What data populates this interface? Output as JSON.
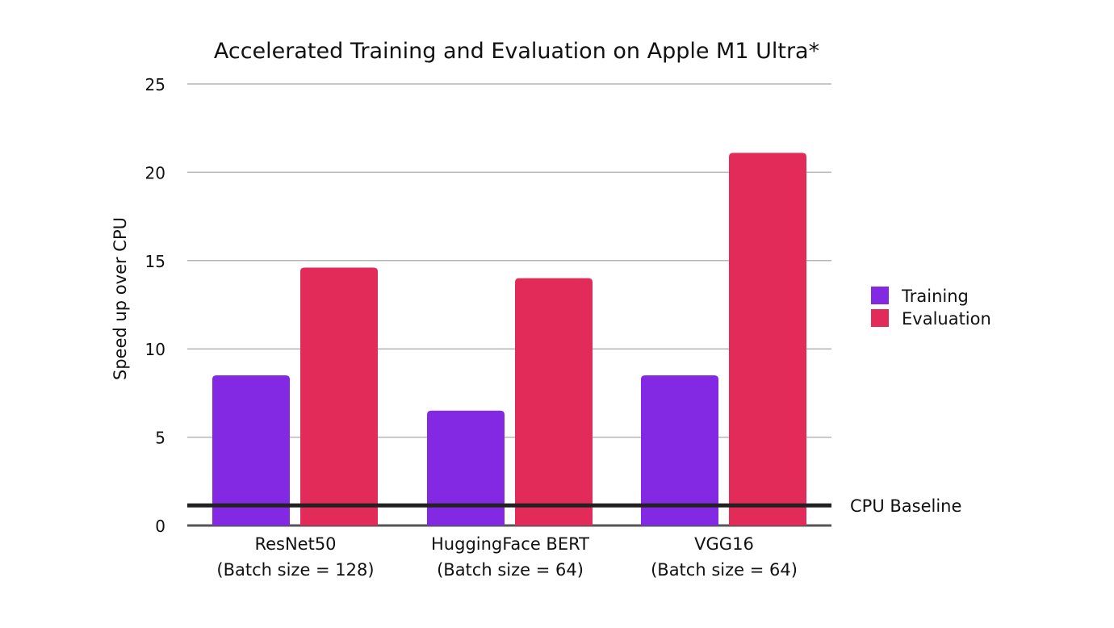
{
  "chart_data": {
    "type": "bar",
    "title": "Accelerated Training and Evaluation on Apple M1 Ultra*",
    "xlabel": "",
    "ylabel": "Speed up over CPU",
    "ylim": [
      0,
      25
    ],
    "yticks": [
      0,
      5,
      10,
      15,
      20,
      25
    ],
    "grid": true,
    "legend_position": "right",
    "categories": [
      [
        "ResNet50",
        "(Batch size = 128)"
      ],
      [
        "HuggingFace BERT",
        "(Batch size = 64)"
      ],
      [
        "VGG16",
        "(Batch size = 64)"
      ]
    ],
    "series": [
      {
        "name": "Training",
        "color": "#8329E4",
        "values": [
          8.5,
          6.5,
          8.5
        ]
      },
      {
        "name": "Evaluation",
        "color": "#E32B5A",
        "values": [
          14.6,
          14.0,
          21.1
        ]
      }
    ],
    "reference_line": {
      "label": "CPU Baseline",
      "value": 1,
      "color": "#222222"
    }
  }
}
